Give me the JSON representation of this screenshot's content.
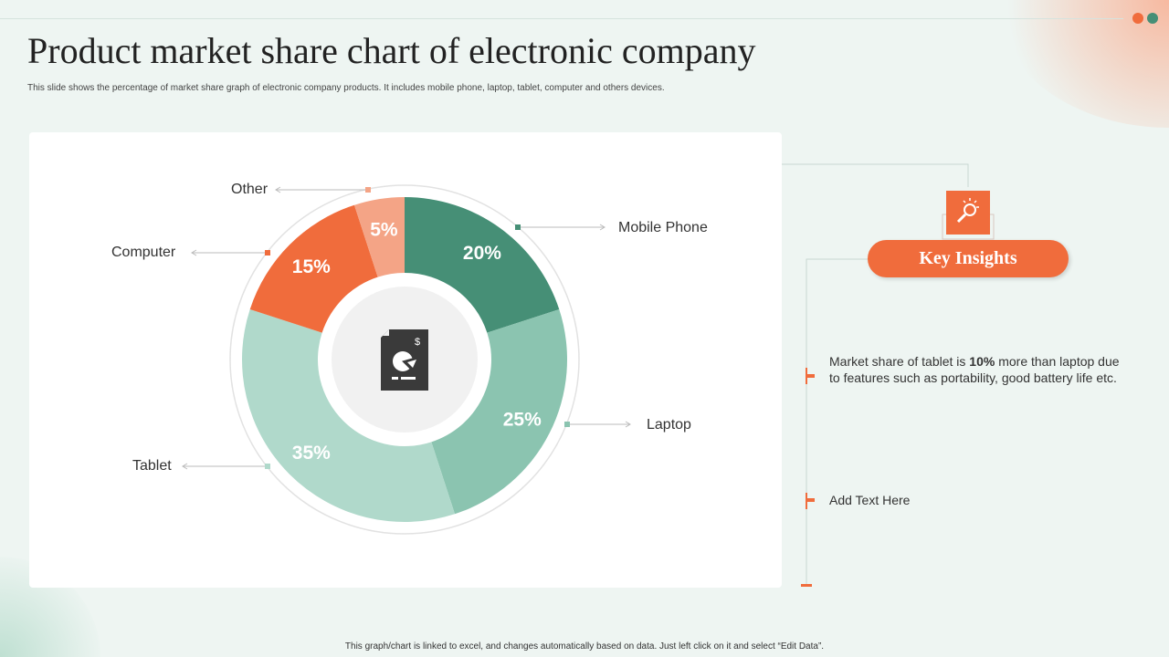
{
  "title": "Product market share chart of electronic company",
  "subtitle": "This slide shows the percentage of market share graph of electronic company products. It includes mobile  phone, laptop, tablet, computer and others  devices.",
  "footer": "This graph/chart is linked to excel, and changes automatically based on data. Just left click on it and select “Edit Data”.",
  "chart_data": {
    "type": "pie",
    "donut": true,
    "categories": [
      "Mobile Phone",
      "Laptop",
      "Tablet",
      "Computer",
      "Other"
    ],
    "values": [
      20,
      25,
      35,
      15,
      5
    ],
    "labels": [
      "20%",
      "25%",
      "35%",
      "15%",
      "5%"
    ],
    "colors": [
      "#468f76",
      "#8bc4b0",
      "#b0d9cb",
      "#f06c3c",
      "#f4a486"
    ],
    "center_icon": "financial-report-pie-icon"
  },
  "insights": {
    "heading": "Key Insights",
    "icon": "lightbulb-search-icon",
    "item1_pre": "Market  share of tablet is ",
    "item1_bold": "10%",
    "item1_post": " more than laptop due to features such as  portability,  good battery life  etc.",
    "item2": "Add Text Here"
  },
  "colors": {
    "accent": "#f06c3c",
    "green": "#468f76"
  }
}
